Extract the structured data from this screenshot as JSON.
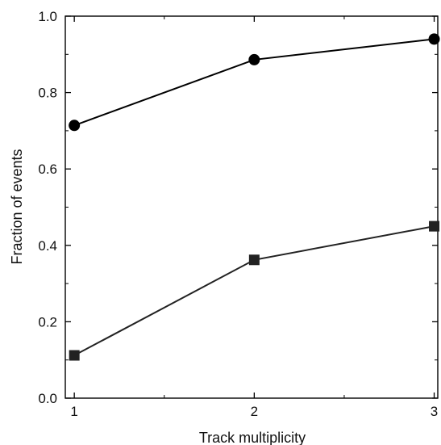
{
  "chart_data": {
    "type": "line",
    "title": "",
    "xlabel": "Track multiplicity",
    "ylabel": "Fraction of events",
    "x": [
      1,
      2,
      3
    ],
    "xlim": [
      0.95,
      3.02
    ],
    "ylim": [
      0.0,
      1.0
    ],
    "xticks": [
      1,
      2,
      3
    ],
    "xtick_labels": [
      "1",
      "2",
      "3"
    ],
    "yticks": [
      0.0,
      0.2,
      0.4,
      0.6,
      0.8,
      1.0
    ],
    "ytick_labels": [
      "0.0",
      "0.2",
      "0.4",
      "0.6",
      "0.8",
      "1.0"
    ],
    "grid": false,
    "legend": "none",
    "series": [
      {
        "marker": "circle",
        "color": "#000000",
        "values": [
          0.714,
          0.886,
          0.94
        ]
      },
      {
        "marker": "square",
        "color": "#222222",
        "values": [
          0.112,
          0.362,
          0.45
        ]
      }
    ]
  }
}
